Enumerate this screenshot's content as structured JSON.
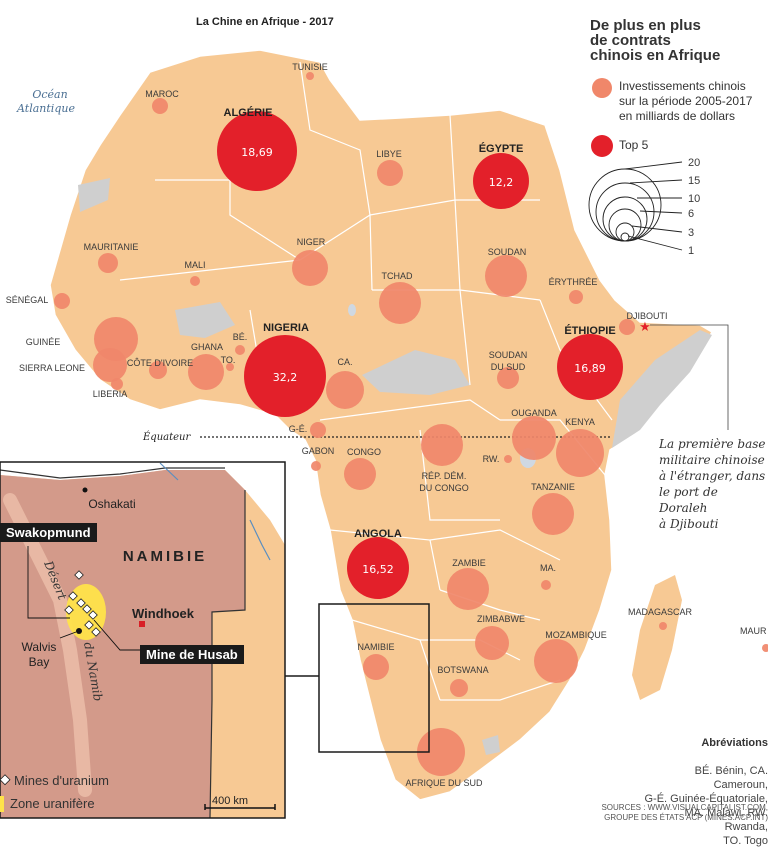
{
  "title": "La Chine en Afrique - 2017",
  "legend": {
    "title_lines": [
      "De plus en plus",
      "de contrats",
      "chinois en Afrique"
    ],
    "investment_label": "Investissements chinois\nsur la période 2005-2017\nen milliards de dollars",
    "top5_label": "Top 5",
    "investment_color": "#f0876a",
    "top5_color": "#e3202a",
    "scale_values": [
      "20",
      "15",
      "10",
      "6",
      "3",
      "1"
    ]
  },
  "ocean_label": [
    "Océan",
    "Atlantique"
  ],
  "equator_label": "Équateur",
  "countries": [
    {
      "name": "MAROC"
    },
    {
      "name": "TUNISIE"
    },
    {
      "name": "ALGÉRIE"
    },
    {
      "name": "LIBYE"
    },
    {
      "name": "ÉGYPTE"
    },
    {
      "name": "MAURITANIE"
    },
    {
      "name": "MALI"
    },
    {
      "name": "NIGER"
    },
    {
      "name": "TCHAD"
    },
    {
      "name": "SOUDAN"
    },
    {
      "name": "ÉRYTHRÉE"
    },
    {
      "name": "SÉNÉGAL"
    },
    {
      "name": "GUINÉE"
    },
    {
      "name": "SIERRA LEONE"
    },
    {
      "name": "LIBERIA"
    },
    {
      "name": "CÔTE D'IVOIRE"
    },
    {
      "name": "GHANA"
    },
    {
      "name": "TO."
    },
    {
      "name": "BÉ."
    },
    {
      "name": "NIGERIA"
    },
    {
      "name": "CA."
    },
    {
      "name": "SOUDAN DU SUD"
    },
    {
      "name": "ÉTHIOPIE"
    },
    {
      "name": "DJIBOUTI"
    },
    {
      "name": "G-É."
    },
    {
      "name": "GABON"
    },
    {
      "name": "CONGO"
    },
    {
      "name": "RÉP. DÉM. DU CONGO"
    },
    {
      "name": "OUGANDA"
    },
    {
      "name": "KENYA"
    },
    {
      "name": "RW."
    },
    {
      "name": "TANZANIE"
    },
    {
      "name": "ANGOLA"
    },
    {
      "name": "ZAMBIE"
    },
    {
      "name": "MA."
    },
    {
      "name": "ZIMBABWE"
    },
    {
      "name": "MOZAMBIQUE"
    },
    {
      "name": "MADAGASCAR"
    },
    {
      "name": "NAMIBIE"
    },
    {
      "name": "BOTSWANA"
    },
    {
      "name": "AFRIQUE DU SUD"
    },
    {
      "name": "MAUR"
    }
  ],
  "top5_values": {
    "ALGÉRIE": "18,69",
    "NIGERIA": "32,2",
    "ÉGYPTE": "12,2",
    "ÉTHIOPIE": "16,89",
    "ANGOLA": "16,52"
  },
  "callout": "La première base\nmilitaire chinoise\nà l'étranger, dans\nle port de Doraleh\nà Djibouti",
  "abbreviations": {
    "title": "Abréviations",
    "text": "BÉ. Bénin, CA. Cameroun,\nG-É. Guinée-Équatoriale,\nMA. Malawi, RW. Rwanda,\nTO. Togo"
  },
  "sources": "SOURCES : WWW.VISUALCAPITALIST.COM,\nGROUPE DES ÉTATS ACP (MINES.ACP.INT)",
  "inset": {
    "country": "NAMIBIE",
    "cities": [
      "Oshakati",
      "Windhoek",
      "Walvis",
      "Bay"
    ],
    "tags": [
      "Swakopmund",
      "Mine de Husab"
    ],
    "desert": [
      "Désert",
      "du Namib"
    ],
    "legend_mines": "Mines d'uranium",
    "legend_zone": "Zone uranifère",
    "scale": "400 km"
  }
}
